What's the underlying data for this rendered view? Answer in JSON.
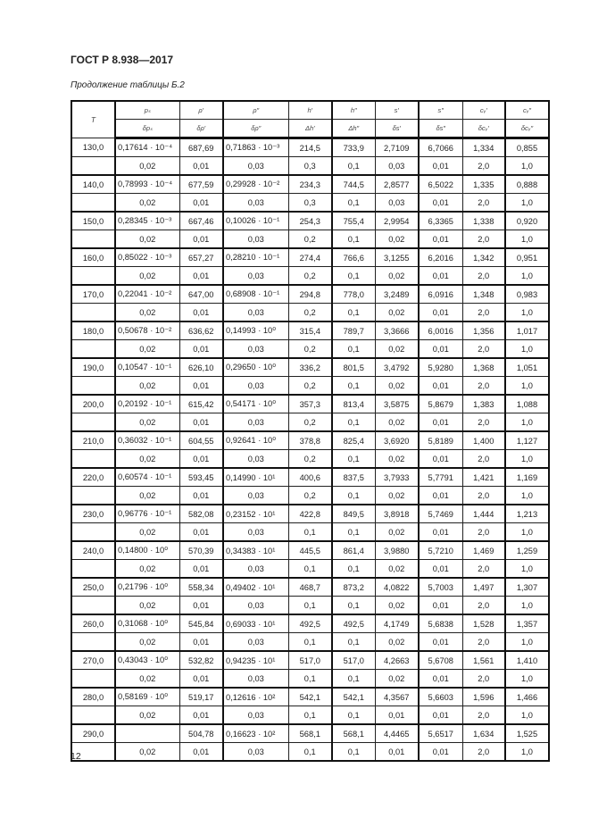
{
  "document": {
    "standard": "ГОСТ Р 8.938—2017",
    "caption": "Продолжение таблицы Б.2",
    "page_number": "12"
  },
  "table": {
    "header_top": [
      "T",
      "pₛ",
      "ρ′",
      "ρ″",
      "h′",
      "h″",
      "s′",
      "s″",
      "cᵥ′",
      "cᵥ″"
    ],
    "header_bottom": [
      "δpₛ",
      "δρ′",
      "δρ″",
      "Δh′",
      "Δh″",
      "δs′",
      "δs″",
      "δcᵥ′",
      "δcᵥ″"
    ],
    "rows": [
      {
        "T": "130,0",
        "values": [
          "0,17614 · 10⁻⁴",
          "687,69",
          "0,71863 · 10⁻³",
          "214,5",
          "733,9",
          "2,7109",
          "6,7066",
          "1,334",
          "0,855"
        ],
        "uncertainty": [
          "0,02",
          "0,01",
          "0,03",
          "0,3",
          "0,1",
          "0,03",
          "0,01",
          "2,0",
          "1,0"
        ]
      },
      {
        "T": "140,0",
        "values": [
          "0,78993 · 10⁻⁴",
          "677,59",
          "0,29928 · 10⁻²",
          "234,3",
          "744,5",
          "2,8577",
          "6,5022",
          "1,335",
          "0,888"
        ],
        "uncertainty": [
          "0,02",
          "0,01",
          "0,03",
          "0,3",
          "0,1",
          "0,03",
          "0,01",
          "2,0",
          "1,0"
        ]
      },
      {
        "T": "150,0",
        "values": [
          "0,28345 · 10⁻³",
          "667,46",
          "0,10026 · 10⁻¹",
          "254,3",
          "755,4",
          "2,9954",
          "6,3365",
          "1,338",
          "0,920"
        ],
        "uncertainty": [
          "0,02",
          "0,01",
          "0,03",
          "0,2",
          "0,1",
          "0,02",
          "0,01",
          "2,0",
          "1,0"
        ]
      },
      {
        "T": "160,0",
        "values": [
          "0,85022 · 10⁻³",
          "657,27",
          "0,28210 · 10⁻¹",
          "274,4",
          "766,6",
          "3,1255",
          "6,2016",
          "1,342",
          "0,951"
        ],
        "uncertainty": [
          "0,02",
          "0,01",
          "0,03",
          "0,2",
          "0,1",
          "0,02",
          "0,01",
          "2,0",
          "1,0"
        ]
      },
      {
        "T": "170,0",
        "values": [
          "0,22041 · 10⁻²",
          "647,00",
          "0,68908 · 10⁻¹",
          "294,8",
          "778,0",
          "3,2489",
          "6,0916",
          "1,348",
          "0,983"
        ],
        "uncertainty": [
          "0,02",
          "0,01",
          "0,03",
          "0,2",
          "0,1",
          "0,02",
          "0,01",
          "2,0",
          "1,0"
        ]
      },
      {
        "T": "180,0",
        "values": [
          "0,50678 · 10⁻²",
          "636,62",
          "0,14993 · 10⁰",
          "315,4",
          "789,7",
          "3,3666",
          "6,0016",
          "1,356",
          "1,017"
        ],
        "uncertainty": [
          "0,02",
          "0,01",
          "0,03",
          "0,2",
          "0,1",
          "0,02",
          "0,01",
          "2,0",
          "1,0"
        ]
      },
      {
        "T": "190,0",
        "values": [
          "0,10547 · 10⁻¹",
          "626,10",
          "0,29650 · 10⁰",
          "336,2",
          "801,5",
          "3,4792",
          "5,9280",
          "1,368",
          "1,051"
        ],
        "uncertainty": [
          "0,02",
          "0,01",
          "0,03",
          "0,2",
          "0,1",
          "0,02",
          "0,01",
          "2,0",
          "1,0"
        ]
      },
      {
        "T": "200,0",
        "values": [
          "0,20192 · 10⁻¹",
          "615,42",
          "0,54171 · 10⁰",
          "357,3",
          "813,4",
          "3,5875",
          "5,8679",
          "1,383",
          "1,088"
        ],
        "uncertainty": [
          "0,02",
          "0,01",
          "0,03",
          "0,2",
          "0,1",
          "0,02",
          "0,01",
          "2,0",
          "1,0"
        ]
      },
      {
        "T": "210,0",
        "values": [
          "0,36032 · 10⁻¹",
          "604,55",
          "0,92641 · 10⁰",
          "378,8",
          "825,4",
          "3,6920",
          "5,8189",
          "1,400",
          "1,127"
        ],
        "uncertainty": [
          "0,02",
          "0,01",
          "0,03",
          "0,2",
          "0,1",
          "0,02",
          "0,01",
          "2,0",
          "1,0"
        ]
      },
      {
        "T": "220,0",
        "values": [
          "0,60574 · 10⁻¹",
          "593,45",
          "0,14990 · 10¹",
          "400,6",
          "837,5",
          "3,7933",
          "5,7791",
          "1,421",
          "1,169"
        ],
        "uncertainty": [
          "0,02",
          "0,01",
          "0,03",
          "0,2",
          "0,1",
          "0,02",
          "0,01",
          "2,0",
          "1,0"
        ]
      },
      {
        "T": "230,0",
        "values": [
          "0,96776 · 10⁻¹",
          "582,08",
          "0,23152 · 10¹",
          "422,8",
          "849,5",
          "3,8918",
          "5,7469",
          "1,444",
          "1,213"
        ],
        "uncertainty": [
          "0,02",
          "0,01",
          "0,03",
          "0,1",
          "0,1",
          "0,02",
          "0,01",
          "2,0",
          "1,0"
        ]
      },
      {
        "T": "240,0",
        "values": [
          "0,14800 · 10⁰",
          "570,39",
          "0,34383 · 10¹",
          "445,5",
          "861,4",
          "3,9880",
          "5,7210",
          "1,469",
          "1,259"
        ],
        "uncertainty": [
          "0,02",
          "0,01",
          "0,03",
          "0,1",
          "0,1",
          "0,02",
          "0,01",
          "2,0",
          "1,0"
        ]
      },
      {
        "T": "250,0",
        "values": [
          "0,21796 · 10⁰",
          "558,34",
          "0,49402 · 10¹",
          "468,7",
          "873,2",
          "4,0822",
          "5,7003",
          "1,497",
          "1,307"
        ],
        "uncertainty": [
          "0,02",
          "0,01",
          "0,03",
          "0,1",
          "0,1",
          "0,02",
          "0,01",
          "2,0",
          "1,0"
        ]
      },
      {
        "T": "260,0",
        "values": [
          "0,31068 · 10⁰",
          "545,84",
          "0,69033 · 10¹",
          "492,5",
          "492,5",
          "4,1749",
          "5,6838",
          "1,528",
          "1,357"
        ],
        "uncertainty": [
          "0,02",
          "0,01",
          "0,03",
          "0,1",
          "0,1",
          "0,02",
          "0,01",
          "2,0",
          "1,0"
        ]
      },
      {
        "T": "270,0",
        "values": [
          "0,43043 · 10⁰",
          "532,82",
          "0,94235 · 10¹",
          "517,0",
          "517,0",
          "4,2663",
          "5,6708",
          "1,561",
          "1,410"
        ],
        "uncertainty": [
          "0,02",
          "0,01",
          "0,03",
          "0,1",
          "0,1",
          "0,02",
          "0,01",
          "2,0",
          "1,0"
        ]
      },
      {
        "T": "280,0",
        "values": [
          "0,58169 · 10⁰",
          "519,17",
          "0,12616 · 10²",
          "542,1",
          "542,1",
          "4,3567",
          "5,6603",
          "1,596",
          "1,466"
        ],
        "uncertainty": [
          "0,02",
          "0,01",
          "0,03",
          "0,1",
          "0,1",
          "0,01",
          "0,01",
          "2,0",
          "1,0"
        ]
      },
      {
        "T": "290,0",
        "values": [
          "",
          "504,78",
          "0,16623 · 10²",
          "568,1",
          "568,1",
          "4,4465",
          "5,6517",
          "1,634",
          "1,525"
        ],
        "uncertainty": [
          "0,02",
          "0,01",
          "0,03",
          "0,1",
          "0,1",
          "0,01",
          "0,01",
          "2,0",
          "1,0"
        ]
      }
    ]
  }
}
